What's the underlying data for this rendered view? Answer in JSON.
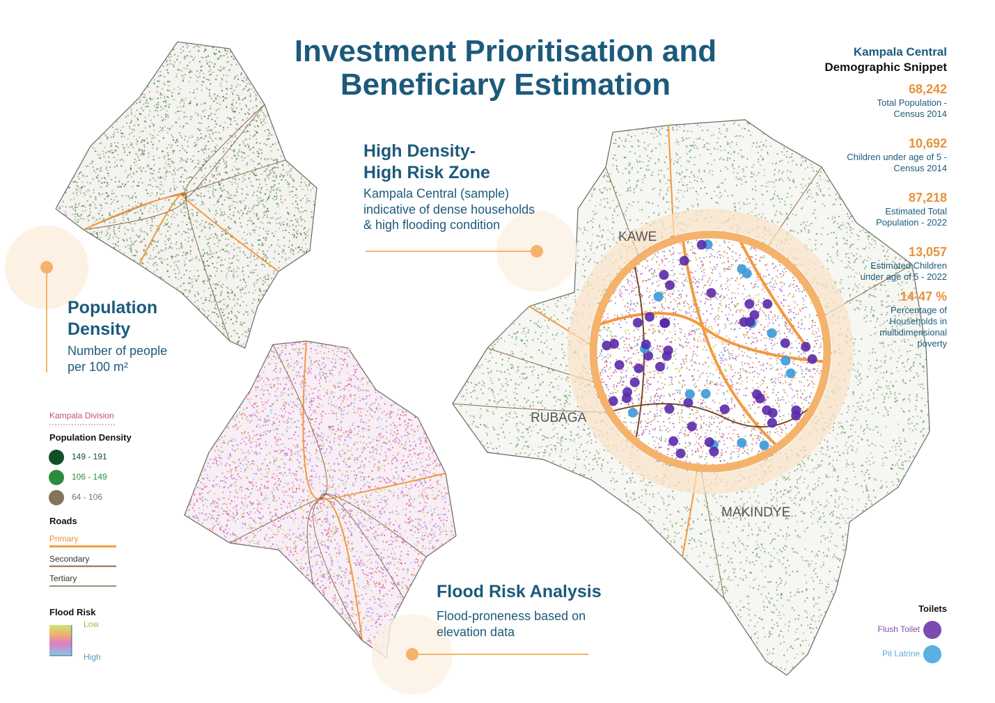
{
  "header": {
    "title": [
      "Investment Prioritisation and",
      "Beneficiary Estimation"
    ]
  },
  "population_density": {
    "title": [
      "Population",
      "Density"
    ],
    "description": [
      "Number of people",
      "per 100 m²"
    ]
  },
  "high_risk": {
    "title": [
      "High Density-",
      "High Risk Zone"
    ],
    "description": [
      "Kampala Central (sample)",
      "indicative of dense households",
      "& high flooding condition"
    ]
  },
  "flood_risk": {
    "title": "Flood Risk Analysis",
    "description": [
      "Flood-proneness based on",
      "elevation data"
    ]
  },
  "snippet": {
    "title": "Kampala Central",
    "subtitle": "Demographic Snippet",
    "stats": [
      {
        "value": "68,242",
        "label": [
          "Total Population -",
          "Census 2014"
        ]
      },
      {
        "value": "10,692",
        "label": [
          "Children under age of 5 -",
          "Census 2014"
        ]
      },
      {
        "value": "87,218",
        "label": [
          "Estimated Total",
          "Population - 2022"
        ]
      },
      {
        "value": "13,057",
        "label": [
          "Estimated Children",
          "under age of 5 - 2022"
        ]
      },
      {
        "value": "14-47 %",
        "label": [
          "Percentage of",
          "Households in",
          "multidimensional",
          "poverty"
        ]
      }
    ]
  },
  "legend": {
    "division": "Kampala Division",
    "density_title": "Population Density",
    "density_items": [
      {
        "label": "149 - 191",
        "color": "#144d2a"
      },
      {
        "label": "106 - 149",
        "color": "#2e8b3e"
      },
      {
        "label": "64 - 106",
        "color": "#837559"
      }
    ],
    "roads_title": "Roads",
    "roads": [
      {
        "label": "Primary",
        "color": "#f39a3c"
      },
      {
        "label": "Secondary",
        "color": "#8a6a4a"
      },
      {
        "label": "Tertiary",
        "color": "#9a9076"
      }
    ],
    "flood_title": "Flood Risk",
    "flood_low": "Low",
    "flood_high": "High"
  },
  "map_labels": [
    "KAWE",
    "RUBAGA",
    "MAKINDYE"
  ],
  "toilets": {
    "title": "Toilets",
    "items": [
      {
        "label": "Flush Toilet",
        "color": "#7b4bb0"
      },
      {
        "label": "Pit Latrine",
        "color": "#5aaee0"
      }
    ]
  }
}
